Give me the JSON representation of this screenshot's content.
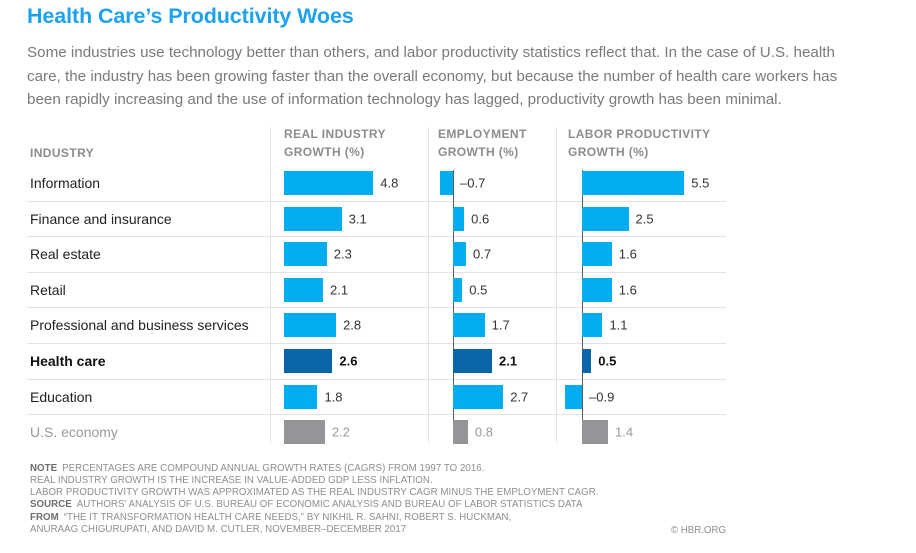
{
  "header": {
    "title": "Health Care’s Productivity Woes",
    "description_lines": [
      "Some industries use technology better than others, and labor productivity statistics reflect that. In the case of U.S. health",
      "care, the industry has been growing faster than the overall economy, but because the number of health care workers has",
      "been rapidly increasing and the use of information technology has lagged, productivity growth has been minimal."
    ]
  },
  "table": {
    "industry_header": "INDUSTRY",
    "column_headers": [
      [
        "REAL INDUSTRY",
        "GROWTH (%)"
      ],
      [
        "EMPLOYMENT",
        "GROWTH (%)"
      ],
      [
        "LABOR PRODUCTIVITY",
        "GROWTH (%)"
      ]
    ]
  },
  "chart_data": {
    "type": "bar",
    "orientation": "horizontal",
    "title": "Health Care’s Productivity Woes",
    "categories": [
      "Information",
      "Finance and insurance",
      "Real estate",
      "Retail",
      "Professional and business services",
      "Health care",
      "Education",
      "U.S. economy"
    ],
    "series": [
      {
        "name": "Real industry growth (%)",
        "values": [
          4.8,
          3.1,
          2.3,
          2.1,
          2.8,
          2.6,
          1.8,
          2.2
        ],
        "value_labels": [
          "4.8",
          "3.1",
          "2.3",
          "2.1",
          "2.8",
          "2.6",
          "1.8",
          "2.2"
        ]
      },
      {
        "name": "Employment growth (%)",
        "values": [
          -0.7,
          0.6,
          0.7,
          0.5,
          1.7,
          2.1,
          2.7,
          0.8
        ],
        "value_labels": [
          "–0.7",
          "0.6",
          "0.7",
          "0.5",
          "1.7",
          "2.1",
          "2.7",
          "0.8"
        ]
      },
      {
        "name": "Labor productivity growth (%)",
        "values": [
          5.5,
          2.5,
          1.6,
          1.6,
          1.1,
          0.5,
          -0.9,
          1.4
        ],
        "value_labels": [
          "5.5",
          "2.5",
          "1.6",
          "1.6",
          "1.1",
          "0.5",
          "–0.9",
          "1.4"
        ]
      }
    ],
    "highlight_category": "Health care",
    "reference_category": "U.S. economy",
    "colors": {
      "default": "#00AEEF",
      "highlight": "#0A66A9",
      "reference": "#939598",
      "title": "#1DA2EE"
    },
    "xlabel": "",
    "ylabel": "Industry",
    "grid": false,
    "legend": "none"
  },
  "footnotes": {
    "lines": [
      {
        "label": "NOTE",
        "text": "PERCENTAGES ARE COMPOUND ANNUAL GROWTH RATES (CAGRS) FROM 1997 TO 2016."
      },
      {
        "label": "",
        "text": "REAL INDUSTRY GROWTH IS THE INCREASE IN VALUE-ADDED GDP LESS INFLATION."
      },
      {
        "label": "",
        "text": "LABOR PRODUCTIVITY GROWTH WAS APPROXIMATED AS THE REAL INDUSTRY CAGR MINUS THE EMPLOYMENT CAGR."
      },
      {
        "label": "SOURCE",
        "text": "AUTHORS’ ANALYSIS OF U.S. BUREAU OF ECONOMIC ANALYSIS AND BUREAU OF LABOR STATISTICS DATA"
      },
      {
        "label": "FROM",
        "text": "“THE IT TRANSFORMATION HEALTH CARE NEEDS,” BY NIKHIL R. SAHNI, ROBERT S. HUCKMAN,"
      },
      {
        "label": "",
        "text": "ANURAAG CHIGURUPATI, AND DAVID M. CUTLER, NOVEMBER–DECEMBER 2017"
      }
    ],
    "credit": "© HBR.ORG"
  }
}
